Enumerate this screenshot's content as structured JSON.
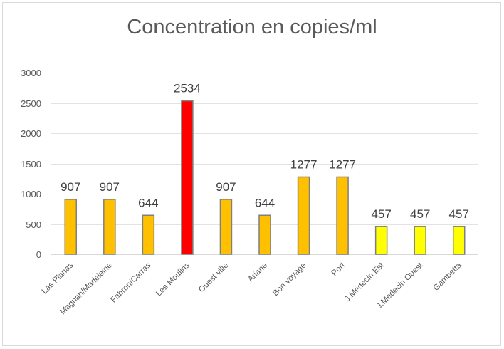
{
  "chart_data": {
    "type": "bar",
    "title": "Concentration en copies/ml",
    "categories": [
      "Las Planas",
      "Magnan/Madeleine",
      "Fabron/Carras",
      "Les Moulins",
      "Ouest ville",
      "Ariane",
      "Bon voyage",
      "Port",
      "J.Médecin Est",
      "J.Médecin Ouest",
      "Gambetta"
    ],
    "values": [
      907,
      907,
      644,
      2534,
      907,
      644,
      1277,
      1277,
      457,
      457,
      457
    ],
    "data_labels": [
      "907",
      "907",
      "644",
      "2534",
      "907",
      "644",
      "1277",
      "1277",
      "457",
      "457",
      "457"
    ],
    "bar_colors": [
      "#ffc000",
      "#ffc000",
      "#ffc000",
      "#ff0000",
      "#ffc000",
      "#ffc000",
      "#ffc000",
      "#ffc000",
      "#ffff00",
      "#ffff00",
      "#ffff00"
    ],
    "bar_border_color": "#7f7f7f",
    "ylim": [
      0,
      3000
    ],
    "yticks": [
      0,
      500,
      1000,
      1500,
      2000,
      2500,
      3000
    ],
    "gridlines": true,
    "legend": "none"
  }
}
